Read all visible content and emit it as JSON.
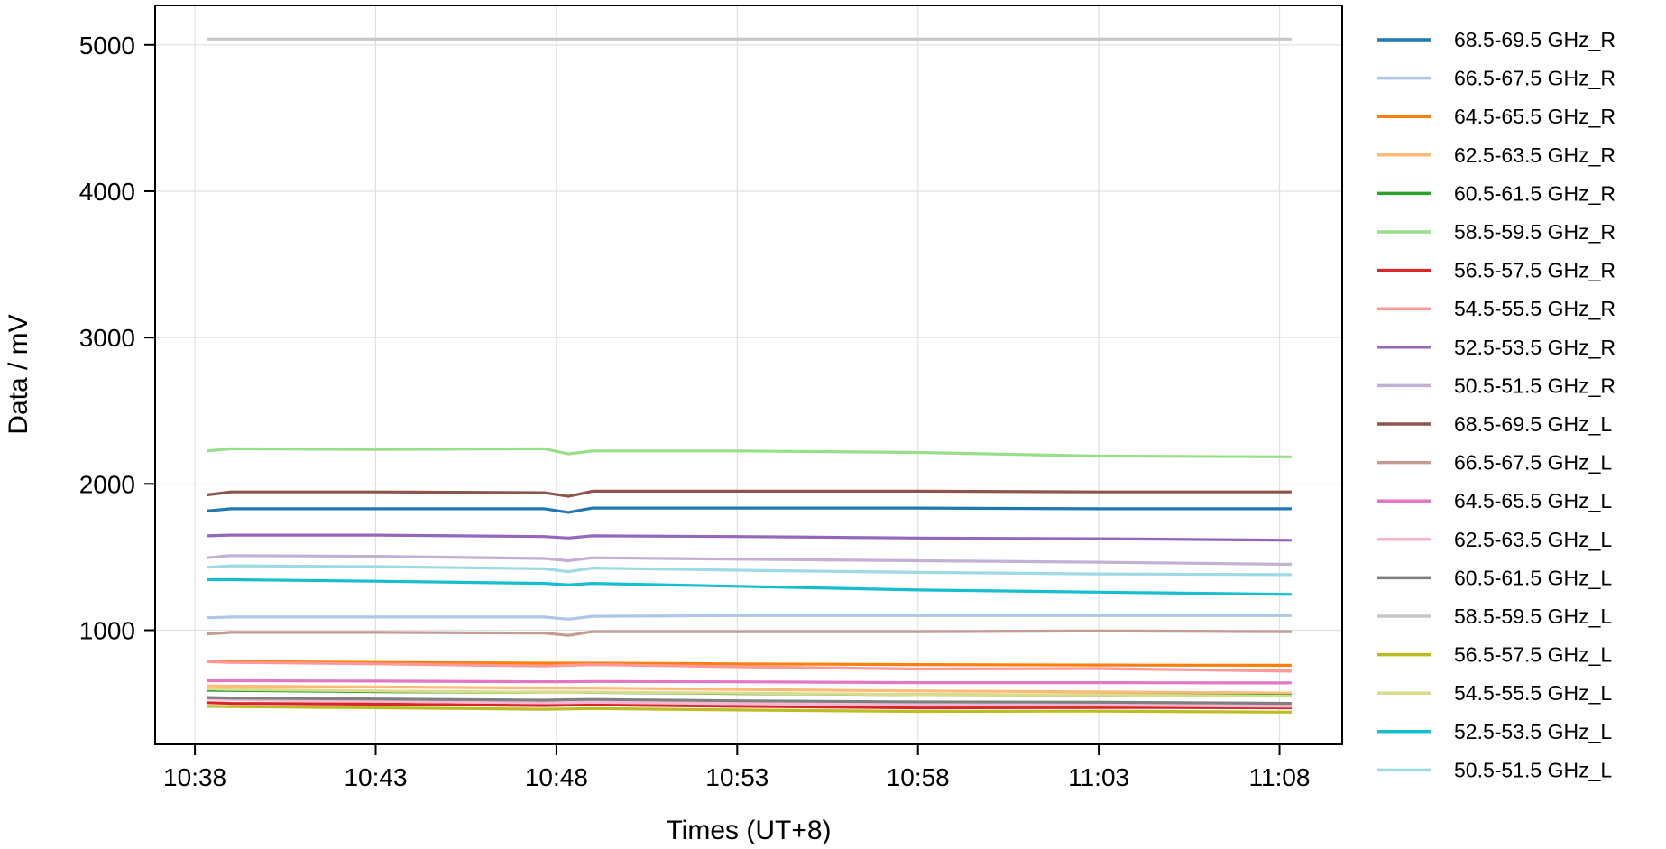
{
  "chart_data": {
    "type": "line",
    "xlabel": "Times (UT+8)",
    "ylabel": "Data / mV",
    "xlim": [
      "10:36:54",
      "11:09:44"
    ],
    "ylim": [
      220,
      5270
    ],
    "xticks": [
      "10:38",
      "10:43",
      "10:48",
      "10:53",
      "10:58",
      "11:03",
      "11:08"
    ],
    "yticks": [
      1000,
      2000,
      3000,
      4000,
      5000
    ],
    "grid": true,
    "legend_position": "outside-right",
    "x": [
      "10:38:20",
      "10:39:00",
      "10:43:00",
      "10:47:40",
      "10:48:20",
      "10:49:00",
      "10:53:00",
      "10:58:00",
      "11:03:00",
      "11:08:20"
    ],
    "series": [
      {
        "name": "68.5-69.5 GHz_R",
        "color": "#1f77b4",
        "values": [
          1815,
          1830,
          1830,
          1830,
          1805,
          1835,
          1835,
          1835,
          1830,
          1830
        ]
      },
      {
        "name": "66.5-67.5 GHz_R",
        "color": "#aec7e8",
        "values": [
          1085,
          1090,
          1090,
          1090,
          1075,
          1095,
          1100,
          1100,
          1100,
          1100
        ]
      },
      {
        "name": "64.5-65.5 GHz_R",
        "color": "#ff7f0e",
        "values": [
          785,
          785,
          780,
          775,
          775,
          775,
          770,
          765,
          762,
          760
        ]
      },
      {
        "name": "62.5-63.5 GHz_R",
        "color": "#ffbb78",
        "values": [
          620,
          618,
          612,
          605,
          605,
          605,
          595,
          585,
          578,
          570
        ]
      },
      {
        "name": "60.5-61.5 GHz_R",
        "color": "#2ca02c",
        "values": [
          590,
          588,
          580,
          575,
          575,
          575,
          568,
          560,
          558,
          555
        ]
      },
      {
        "name": "58.5-59.5 GHz_R",
        "color": "#98df8a",
        "values": [
          2225,
          2240,
          2235,
          2240,
          2205,
          2225,
          2225,
          2215,
          2190,
          2185
        ]
      },
      {
        "name": "56.5-57.5 GHz_R",
        "color": "#d62728",
        "values": [
          505,
          500,
          495,
          485,
          488,
          490,
          480,
          470,
          472,
          470
        ]
      },
      {
        "name": "54.5-55.5 GHz_R",
        "color": "#ff9896",
        "values": [
          785,
          780,
          770,
          755,
          760,
          765,
          750,
          735,
          738,
          720
        ]
      },
      {
        "name": "52.5-53.5 GHz_R",
        "color": "#9467bd",
        "values": [
          1645,
          1650,
          1650,
          1640,
          1630,
          1645,
          1640,
          1630,
          1625,
          1615
        ]
      },
      {
        "name": "50.5-51.5 GHz_R",
        "color": "#c5b0d5",
        "values": [
          1495,
          1510,
          1505,
          1490,
          1475,
          1495,
          1485,
          1475,
          1465,
          1450
        ]
      },
      {
        "name": "68.5-69.5 GHz_L",
        "color": "#8c564b",
        "values": [
          1925,
          1945,
          1945,
          1940,
          1915,
          1950,
          1950,
          1950,
          1945,
          1945
        ]
      },
      {
        "name": "66.5-67.5 GHz_L",
        "color": "#c49c94",
        "values": [
          975,
          985,
          985,
          980,
          965,
          990,
          990,
          990,
          995,
          990
        ]
      },
      {
        "name": "64.5-65.5 GHz_L",
        "color": "#e377c2",
        "values": [
          655,
          655,
          652,
          648,
          648,
          650,
          647,
          642,
          642,
          640
        ]
      },
      {
        "name": "62.5-63.5 GHz_L",
        "color": "#f7b6d2",
        "values": [
          530,
          525,
          515,
          505,
          505,
          508,
          498,
          488,
          488,
          480
        ]
      },
      {
        "name": "60.5-61.5 GHz_L",
        "color": "#7f7f7f",
        "values": [
          540,
          537,
          530,
          522,
          525,
          527,
          518,
          510,
          508,
          500
        ]
      },
      {
        "name": "58.5-59.5 GHz_L",
        "color": "#c7c7c7",
        "values": [
          5040,
          5040,
          5040,
          5040,
          5040,
          5040,
          5040,
          5040,
          5040,
          5040
        ]
      },
      {
        "name": "56.5-57.5 GHz_L",
        "color": "#bcbd22",
        "values": [
          480,
          478,
          470,
          460,
          462,
          465,
          455,
          445,
          447,
          440
        ]
      },
      {
        "name": "54.5-55.5 GHz_L",
        "color": "#dbdb8d",
        "values": [
          600,
          595,
          585,
          575,
          575,
          577,
          570,
          560,
          558,
          550
        ]
      },
      {
        "name": "52.5-53.5 GHz_L",
        "color": "#17becf",
        "values": [
          1345,
          1345,
          1335,
          1320,
          1310,
          1320,
          1300,
          1275,
          1260,
          1245
        ]
      },
      {
        "name": "50.5-51.5 GHz_L",
        "color": "#9edae5",
        "values": [
          1430,
          1440,
          1435,
          1420,
          1400,
          1425,
          1410,
          1395,
          1385,
          1380
        ]
      }
    ]
  }
}
